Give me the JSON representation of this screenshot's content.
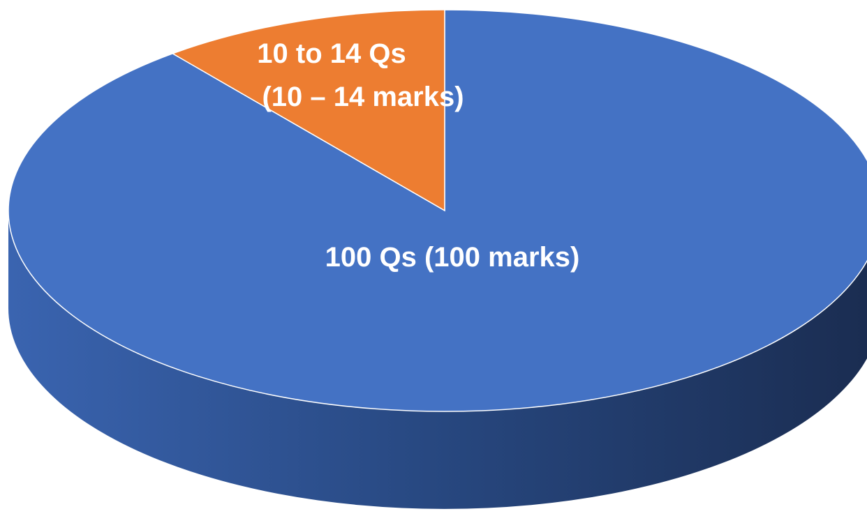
{
  "chart_data": {
    "type": "pie",
    "style": "3d",
    "title": "",
    "slices": [
      {
        "label_line1": "100 Qs (100 marks)",
        "label_line2": "",
        "value": 100,
        "color": "#4472C4",
        "side_color": "#2F528F"
      },
      {
        "label_line1": "10 to 14 Qs",
        "label_line2": "(10 – 14 marks)",
        "value": 12,
        "color": "#ED7D31",
        "side_color": "#AE5A21"
      }
    ],
    "label_color": "#FFFFFF",
    "legend": "none"
  }
}
